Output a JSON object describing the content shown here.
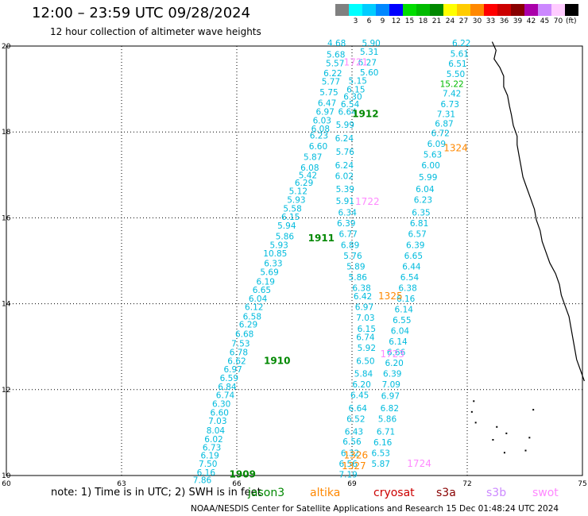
{
  "title": "12:00 – 23:59 UTC 09/28/2024",
  "subtitle": "12 hour collection of altimeter wave heights",
  "unit": "(ft)",
  "scale": [
    {
      "color": "#808080",
      "label": ""
    },
    {
      "color": "#00ffff",
      "label": "3"
    },
    {
      "color": "#00ccff",
      "label": "6"
    },
    {
      "color": "#0088ff",
      "label": "9"
    },
    {
      "color": "#0000ff",
      "label": "12"
    },
    {
      "color": "#00dd00",
      "label": "15"
    },
    {
      "color": "#00bb00",
      "label": "18"
    },
    {
      "color": "#008800",
      "label": "21"
    },
    {
      "color": "#ffff00",
      "label": "24"
    },
    {
      "color": "#ffcc00",
      "label": "27"
    },
    {
      "color": "#ff8800",
      "label": "30"
    },
    {
      "color": "#ff0000",
      "label": "33"
    },
    {
      "color": "#cc0000",
      "label": "36"
    },
    {
      "color": "#880000",
      "label": "39"
    },
    {
      "color": "#aa00aa",
      "label": "42"
    },
    {
      "color": "#cc88ff",
      "label": "45"
    },
    {
      "color": "#ffccff",
      "label": "70"
    },
    {
      "color": "#000000",
      "label": ""
    }
  ],
  "axes": {
    "x_ticks": [
      "60",
      "63",
      "66",
      "69",
      "72",
      "75"
    ],
    "y_ticks": [
      "10",
      "12",
      "14",
      "16",
      "18",
      "20"
    ]
  },
  "note": "note:  1) Time is in UTC; 2) SWH is in feet",
  "footer": "NOAA/NESDIS Center for Satellite Applications and Research    15 Dec 01:48:24 UTC 2024",
  "satellites": [
    {
      "name": "jason3",
      "color": "#008800"
    },
    {
      "name": "altika",
      "color": "#ff8800"
    },
    {
      "name": "cryosat",
      "color": "#cc0000"
    },
    {
      "name": "s3a",
      "color": "#880000"
    },
    {
      "name": "s3b",
      "color": "#cc88ff"
    },
    {
      "name": "swot",
      "color": "#ff88ff"
    }
  ],
  "pass_labels": [
    {
      "text": "1912",
      "lon": 69.35,
      "lat": 18.35,
      "color": "#008800"
    },
    {
      "text": "1911",
      "lon": 68.2,
      "lat": 15.45,
      "color": "#008800"
    },
    {
      "text": "1910",
      "lon": 67.05,
      "lat": 12.6,
      "color": "#008800"
    },
    {
      "text": "1909",
      "lon": 66.15,
      "lat": 9.95,
      "color": "#008800"
    },
    {
      "text": "1324",
      "lon": 71.7,
      "lat": 17.55,
      "color": "#ff8800"
    },
    {
      "text": "1325",
      "lon": 70.0,
      "lat": 14.1,
      "color": "#ff8800"
    },
    {
      "text": "1326",
      "lon": 69.1,
      "lat": 10.4,
      "color": "#ff8800"
    },
    {
      "text": "1327",
      "lon": 69.05,
      "lat": 10.15,
      "color": "#ff8800"
    },
    {
      "text": "1722",
      "lon": 69.4,
      "lat": 16.3,
      "color": "#ff88ff"
    },
    {
      "text": "1723",
      "lon": 70.05,
      "lat": 12.75,
      "color": "#ff88ff"
    },
    {
      "text": "1724",
      "lon": 70.75,
      "lat": 10.2,
      "color": "#ff88ff"
    },
    {
      "text": "1721",
      "lon": 69.1,
      "lat": 19.55,
      "color": "#ff88ff"
    }
  ],
  "tracks": [
    {
      "color": "#00bbdd",
      "points": [
        [
          "4.68",
          68.6,
          20.0
        ],
        [
          "5.68",
          68.58,
          19.73
        ],
        [
          "5.57",
          68.56,
          19.53
        ],
        [
          "6.22",
          68.5,
          19.3
        ],
        [
          "5.77",
          68.45,
          19.1
        ],
        [
          "5.75",
          68.4,
          18.85
        ],
        [
          "6.47",
          68.35,
          18.6
        ],
        [
          "6.97",
          68.3,
          18.4
        ],
        [
          "6.03",
          68.22,
          18.2
        ],
        [
          "6.08",
          68.18,
          18.0
        ],
        [
          "6.23",
          68.14,
          17.85
        ],
        [
          "6.60",
          68.12,
          17.6
        ],
        [
          "5.87",
          67.98,
          17.35
        ],
        [
          "6.08",
          67.9,
          17.1
        ],
        [
          "5.42",
          67.85,
          16.92
        ],
        [
          "6.29",
          67.75,
          16.75
        ],
        [
          "5.12",
          67.6,
          16.55
        ],
        [
          "5.93",
          67.55,
          16.35
        ],
        [
          "5.58",
          67.45,
          16.15
        ],
        [
          "6.15",
          67.4,
          15.95
        ],
        [
          "5.94",
          67.3,
          15.75
        ],
        [
          "5.86",
          67.25,
          15.5
        ],
        [
          "5.93",
          67.1,
          15.3
        ],
        [
          "10.85",
          67.0,
          15.1
        ],
        [
          "6.33",
          66.95,
          14.87
        ],
        [
          "5.69",
          66.85,
          14.67
        ],
        [
          "6.19",
          66.75,
          14.45
        ],
        [
          "6.65",
          66.65,
          14.25
        ],
        [
          "6.04",
          66.55,
          14.05
        ],
        [
          "6.12",
          66.45,
          13.85
        ],
        [
          "6.58",
          66.4,
          13.63
        ],
        [
          "6.29",
          66.3,
          13.45
        ],
        [
          "6.68",
          66.2,
          13.23
        ],
        [
          "7.53",
          66.1,
          13.0
        ],
        [
          "6.78",
          66.05,
          12.8
        ],
        [
          "6.62",
          66.0,
          12.6
        ],
        [
          "6.97",
          65.9,
          12.4
        ],
        [
          "6.59",
          65.8,
          12.2
        ],
        [
          "6.84",
          65.75,
          12.0
        ],
        [
          "6.74",
          65.7,
          11.8
        ],
        [
          "6.30",
          65.6,
          11.6
        ],
        [
          "6.60",
          65.55,
          11.4
        ],
        [
          "7.03",
          65.5,
          11.2
        ],
        [
          "8.04",
          65.45,
          10.98
        ],
        [
          "6.02",
          65.4,
          10.78
        ],
        [
          "6.73",
          65.35,
          10.58
        ],
        [
          "6.19",
          65.3,
          10.4
        ],
        [
          "7.50",
          65.25,
          10.2
        ],
        [
          "6.16",
          65.2,
          10.0
        ],
        [
          "7.86",
          65.1,
          9.82
        ]
      ]
    },
    {
      "color": "#00bbdd",
      "points": [
        [
          "5.90",
          69.5,
          20.0
        ],
        [
          "5.31",
          69.45,
          19.8
        ],
        [
          "6.27",
          69.4,
          19.55
        ],
        [
          "5.60",
          69.45,
          19.32
        ],
        [
          "5.15",
          69.15,
          19.12
        ],
        [
          "6.15",
          69.1,
          18.92
        ],
        [
          "6.30",
          69.02,
          18.75
        ],
        [
          "6.54",
          68.95,
          18.58
        ],
        [
          "6.64",
          68.88,
          18.4
        ],
        [
          "5.99",
          68.82,
          18.1
        ],
        [
          "6.24",
          68.8,
          17.78
        ],
        [
          "5.76",
          68.82,
          17.47
        ],
        [
          "6.24",
          68.8,
          17.15
        ],
        [
          "6.02",
          68.8,
          16.9
        ],
        [
          "5.39",
          68.82,
          16.6
        ],
        [
          "5.91",
          68.82,
          16.32
        ],
        [
          "6.34",
          68.88,
          16.05
        ],
        [
          "6.39",
          68.85,
          15.8
        ],
        [
          "6.77",
          68.9,
          15.55
        ],
        [
          "6.89",
          68.95,
          15.3
        ],
        [
          "5.76",
          69.02,
          15.05
        ],
        [
          "5.89",
          69.1,
          14.8
        ],
        [
          "5.86",
          69.15,
          14.55
        ],
        [
          "6.38",
          69.25,
          14.3
        ],
        [
          "6.42",
          69.28,
          14.1
        ],
        [
          "6.97",
          69.32,
          13.85
        ],
        [
          "7.03",
          69.35,
          13.6
        ],
        [
          "6.15",
          69.38,
          13.35
        ],
        [
          "6.74",
          69.35,
          13.15
        ],
        [
          "5.92",
          69.38,
          12.9
        ],
        [
          "6.50",
          69.35,
          12.6
        ],
        [
          "5.84",
          69.3,
          12.3
        ],
        [
          "6.20",
          69.25,
          12.05
        ],
        [
          "6.45",
          69.2,
          11.8
        ],
        [
          "6.64",
          69.15,
          11.5
        ],
        [
          "6.52",
          69.1,
          11.25
        ],
        [
          "6.43",
          69.05,
          10.95
        ],
        [
          "6.56",
          69.0,
          10.72
        ],
        [
          "6.32",
          68.95,
          10.45
        ],
        [
          "6.56",
          68.9,
          10.2
        ],
        [
          "7.19",
          68.9,
          9.95
        ]
      ]
    },
    {
      "color": "#00bbdd",
      "points": [
        [
          "6.22",
          71.85,
          20.0
        ],
        [
          "5.61",
          71.8,
          19.75
        ],
        [
          "6.51",
          71.75,
          19.52
        ],
        [
          "5.50",
          71.7,
          19.28
        ],
        [
          "7.42",
          71.6,
          18.83
        ],
        [
          "6.73",
          71.55,
          18.58
        ],
        [
          "7.31",
          71.45,
          18.35
        ],
        [
          "6.87",
          71.4,
          18.12
        ],
        [
          "6.72",
          71.3,
          17.9
        ],
        [
          "6.09",
          71.2,
          17.65
        ],
        [
          "5.63",
          71.1,
          17.4
        ],
        [
          "6.00",
          71.05,
          17.15
        ],
        [
          "5.99",
          70.98,
          16.88
        ],
        [
          "6.04",
          70.9,
          16.6
        ],
        [
          "6.23",
          70.85,
          16.35
        ],
        [
          "6.35",
          70.8,
          16.05
        ],
        [
          "6.81",
          70.75,
          15.8
        ],
        [
          "6.57",
          70.7,
          15.55
        ],
        [
          "6.39",
          70.65,
          15.3
        ],
        [
          "6.65",
          70.6,
          15.05
        ],
        [
          "6.44",
          70.55,
          14.8
        ],
        [
          "6.54",
          70.5,
          14.55
        ],
        [
          "6.38",
          70.45,
          14.3
        ],
        [
          "6.16",
          70.4,
          14.05
        ],
        [
          "6.14",
          70.35,
          13.8
        ],
        [
          "6.55",
          70.3,
          13.55
        ],
        [
          "6.04",
          70.25,
          13.3
        ],
        [
          "6.14",
          70.2,
          13.05
        ],
        [
          "6.66",
          70.15,
          12.8
        ],
        [
          "6.20",
          70.1,
          12.55
        ],
        [
          "6.39",
          70.05,
          12.3
        ],
        [
          "7.09",
          70.02,
          12.05
        ],
        [
          "6.97",
          70.0,
          11.78
        ],
        [
          "6.82",
          69.98,
          11.5
        ],
        [
          "5.86",
          69.92,
          11.25
        ],
        [
          "6.71",
          69.88,
          10.95
        ],
        [
          "6.16",
          69.8,
          10.7
        ],
        [
          "6.53",
          69.75,
          10.45
        ],
        [
          "5.87",
          69.75,
          10.2
        ]
      ]
    },
    {
      "color": "#00bb00",
      "points": [
        [
          "15.22",
          71.6,
          19.05
        ]
      ]
    }
  ],
  "coast": [
    [
      72.65,
      20.1
    ],
    [
      72.75,
      19.9
    ],
    [
      72.7,
      19.7
    ],
    [
      72.85,
      19.5
    ],
    [
      72.95,
      19.3
    ],
    [
      72.95,
      19.05
    ],
    [
      73.05,
      18.85
    ],
    [
      73.1,
      18.6
    ],
    [
      73.15,
      18.4
    ],
    [
      73.2,
      18.15
    ],
    [
      73.3,
      17.9
    ],
    [
      73.3,
      17.7
    ],
    [
      73.35,
      17.45
    ],
    [
      73.4,
      17.2
    ],
    [
      73.45,
      16.95
    ],
    [
      73.55,
      16.7
    ],
    [
      73.65,
      16.45
    ],
    [
      73.75,
      16.2
    ],
    [
      73.8,
      15.95
    ],
    [
      73.9,
      15.7
    ],
    [
      73.95,
      15.45
    ],
    [
      74.05,
      15.2
    ],
    [
      74.15,
      14.95
    ],
    [
      74.3,
      14.7
    ],
    [
      74.4,
      14.45
    ],
    [
      74.45,
      14.2
    ],
    [
      74.55,
      13.95
    ],
    [
      74.65,
      13.7
    ],
    [
      74.7,
      13.45
    ],
    [
      74.75,
      13.2
    ],
    [
      74.8,
      12.95
    ],
    [
      74.85,
      12.7
    ],
    [
      74.95,
      12.45
    ],
    [
      75.05,
      12.2
    ]
  ],
  "islands": [
    [
      72.2,
      11.25
    ],
    [
      72.1,
      11.5
    ],
    [
      72.65,
      10.85
    ],
    [
      72.95,
      10.55
    ],
    [
      73.0,
      11.0
    ],
    [
      72.75,
      11.15
    ],
    [
      72.15,
      11.75
    ],
    [
      73.6,
      10.9
    ],
    [
      73.7,
      11.55
    ],
    [
      73.5,
      10.6
    ]
  ]
}
